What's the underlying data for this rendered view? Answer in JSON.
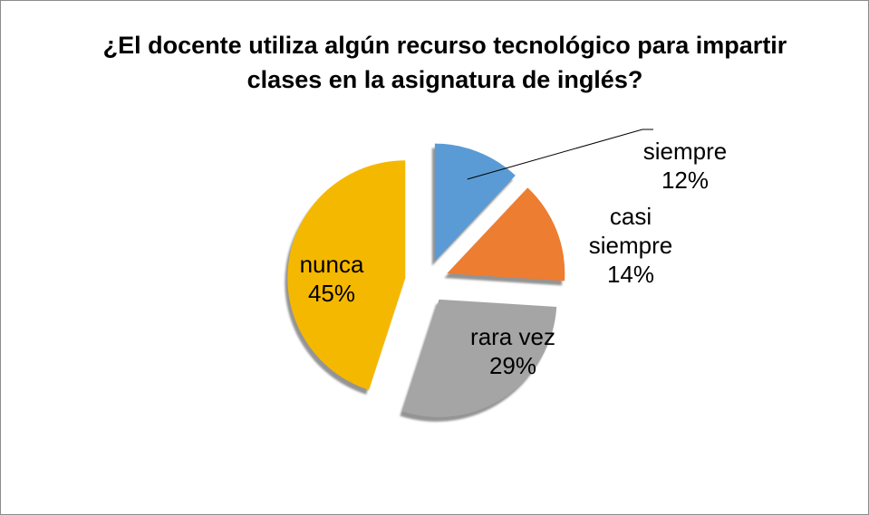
{
  "chart_data": {
    "type": "pie",
    "title": "¿El docente utiliza algún recurso tecnológico para impartir clases en la asignatura de inglés?",
    "categories": [
      "siempre",
      "casi siempre",
      "rara vez",
      "nunca"
    ],
    "values": [
      12,
      14,
      29,
      45
    ],
    "value_labels": [
      "12%",
      "14%",
      "29%",
      "45%"
    ],
    "colors": [
      "#5b9bd5",
      "#ed7d31",
      "#a5a5a5",
      "#f5b800"
    ]
  }
}
